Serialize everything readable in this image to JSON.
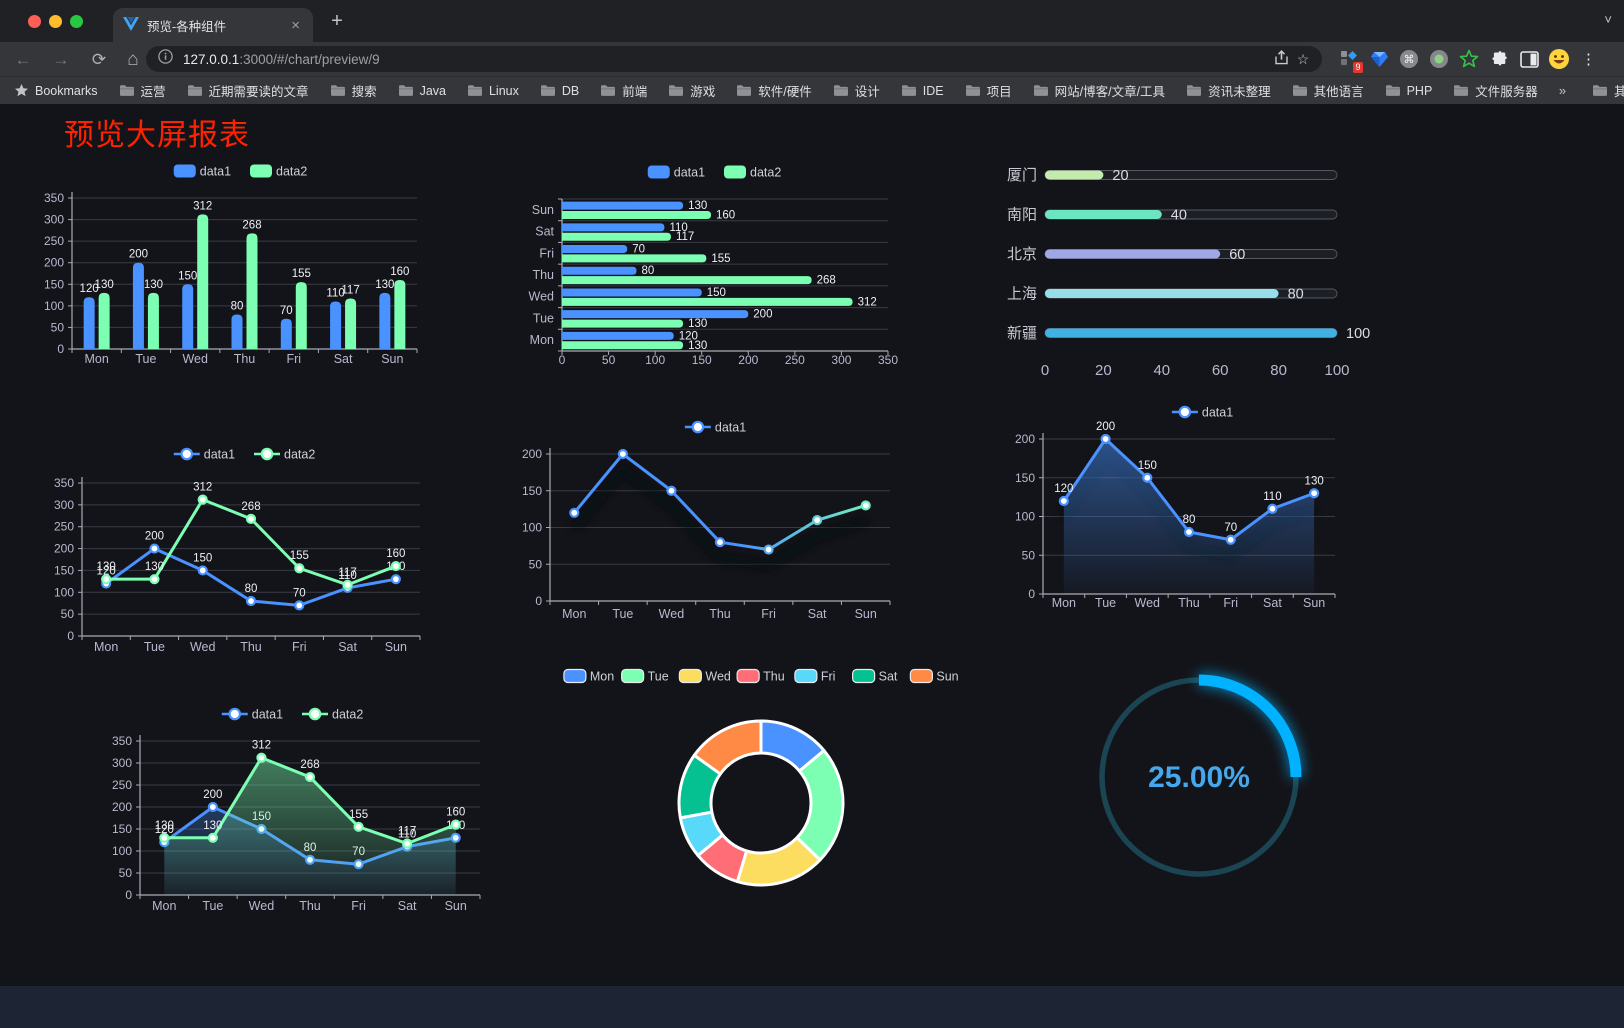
{
  "browser": {
    "tab_title": "预览-各种组件",
    "tab_close_glyph": "×",
    "new_tab_glyph": "+",
    "tabstrip_chevron_glyph": "˅",
    "url_host": "127.0.0.1",
    "url_path": ":3000/#/chart/preview/9",
    "bookmarks_label": "Bookmarks",
    "bookmarks": [
      "运营",
      "近期需要读的文章",
      "搜索",
      "Java",
      "Linux",
      "DB",
      "前端",
      "游戏",
      "软件/硬件",
      "设计",
      "IDE",
      "项目",
      "网站/博客/文章/工具",
      "资讯未整理",
      "其他语言",
      "PHP",
      "文件服务器"
    ],
    "bookmarks_overflow_glyph": "»",
    "other_bookmarks_label": "其他书签",
    "extension_badge": "9"
  },
  "page": {
    "title": "预览大屏报表",
    "title_color": "#ff2200"
  },
  "chart_data": [
    {
      "id": "grouped-bar",
      "type": "bar",
      "legend_position": "top",
      "grid": true,
      "categories": [
        "Mon",
        "Tue",
        "Wed",
        "Thu",
        "Fri",
        "Sat",
        "Sun"
      ],
      "series": [
        {
          "name": "data1",
          "color": "#4992ff",
          "values": [
            120,
            200,
            150,
            80,
            70,
            110,
            130
          ]
        },
        {
          "name": "data2",
          "color": "#7cffb2",
          "values": [
            130,
            130,
            312,
            268,
            155,
            117,
            160
          ]
        }
      ],
      "ylim": [
        0,
        350
      ],
      "ytick_step": 50,
      "bar_labels": true
    },
    {
      "id": "horizontal-grouped-bar",
      "type": "bar",
      "orientation": "horizontal",
      "legend_position": "top",
      "grid": true,
      "categories_bottom_to_top": [
        "Mon",
        "Tue",
        "Wed",
        "Thu",
        "Fri",
        "Sat",
        "Sun"
      ],
      "series": [
        {
          "name": "data1",
          "color": "#4992ff",
          "values": [
            120,
            200,
            150,
            80,
            70,
            110,
            130
          ]
        },
        {
          "name": "data2",
          "color": "#7cffb2",
          "values": [
            130,
            130,
            312,
            268,
            155,
            117,
            160
          ]
        }
      ],
      "xlim": [
        0,
        350
      ],
      "xtick_step": 50,
      "bar_labels": true
    },
    {
      "id": "city-progress",
      "type": "bar",
      "orientation": "horizontal",
      "categories": [
        "厦门",
        "南阳",
        "北京",
        "上海",
        "新疆"
      ],
      "values": [
        20,
        40,
        60,
        80,
        100
      ],
      "colors": [
        "#c4ebad",
        "#6be6c1",
        "#a0a7e6",
        "#96dee8",
        "#3fb1e3"
      ],
      "xlim": [
        0,
        100
      ],
      "xticks": [
        0,
        20,
        40,
        60,
        80,
        100
      ],
      "value_labels": true
    },
    {
      "id": "two-line",
      "type": "line",
      "legend_position": "top",
      "grid": true,
      "categories": [
        "Mon",
        "Tue",
        "Wed",
        "Thu",
        "Fri",
        "Sat",
        "Sun"
      ],
      "series": [
        {
          "name": "data1",
          "color": "#4992ff",
          "values": [
            120,
            200,
            150,
            80,
            70,
            110,
            130
          ]
        },
        {
          "name": "data2",
          "color": "#7cffb2",
          "values": [
            130,
            130,
            312,
            268,
            155,
            117,
            160
          ]
        }
      ],
      "ylim": [
        0,
        350
      ],
      "ytick_step": 50,
      "point_labels": true
    },
    {
      "id": "gradient-line",
      "type": "line",
      "legend_position": "top",
      "grid": true,
      "categories": [
        "Mon",
        "Tue",
        "Wed",
        "Thu",
        "Fri",
        "Sat",
        "Sun"
      ],
      "series": [
        {
          "name": "data1",
          "gradient": [
            "#4992ff",
            "#7cffb2"
          ],
          "values": [
            120,
            200,
            150,
            80,
            70,
            110,
            130
          ]
        }
      ],
      "ylim": [
        0,
        200
      ],
      "ytick_step": 50,
      "point_labels": false,
      "shadow": true
    },
    {
      "id": "single-area",
      "type": "area",
      "legend_position": "top",
      "grid": true,
      "categories": [
        "Mon",
        "Tue",
        "Wed",
        "Thu",
        "Fri",
        "Sat",
        "Sun"
      ],
      "series": [
        {
          "name": "data1",
          "color": "#4992ff",
          "values": [
            120,
            200,
            150,
            80,
            70,
            110,
            130
          ]
        }
      ],
      "ylim": [
        0,
        200
      ],
      "ytick_step": 50,
      "point_labels": true,
      "shadow": true
    },
    {
      "id": "two-area",
      "type": "area",
      "legend_position": "top",
      "grid": true,
      "categories": [
        "Mon",
        "Tue",
        "Wed",
        "Thu",
        "Fri",
        "Sat",
        "Sun"
      ],
      "series": [
        {
          "name": "data1",
          "color": "#4992ff",
          "values": [
            120,
            200,
            150,
            80,
            70,
            110,
            130
          ]
        },
        {
          "name": "data2",
          "color": "#7cffb2",
          "values": [
            130,
            130,
            312,
            268,
            155,
            117,
            160
          ]
        }
      ],
      "ylim": [
        0,
        350
      ],
      "ytick_step": 50,
      "point_labels": true
    },
    {
      "id": "weekday-donut",
      "type": "pie",
      "legend_position": "top",
      "inner_radius_ratio": 0.61,
      "categories": [
        "Mon",
        "Tue",
        "Wed",
        "Thu",
        "Fri",
        "Sat",
        "Sun"
      ],
      "values": [
        120,
        200,
        150,
        80,
        70,
        110,
        130
      ],
      "colors": [
        "#4992ff",
        "#7cffb2",
        "#fddd60",
        "#ff6e76",
        "#58d9f9",
        "#05c091",
        "#ff8a45"
      ],
      "border_color": "#ffffff"
    },
    {
      "id": "percent-gauge",
      "type": "gauge",
      "value": 25,
      "max": 100,
      "label": "25.00%",
      "progress_color": "#00b2ff",
      "track_color": "#1b4552",
      "text_color": "#45a8ec"
    }
  ]
}
